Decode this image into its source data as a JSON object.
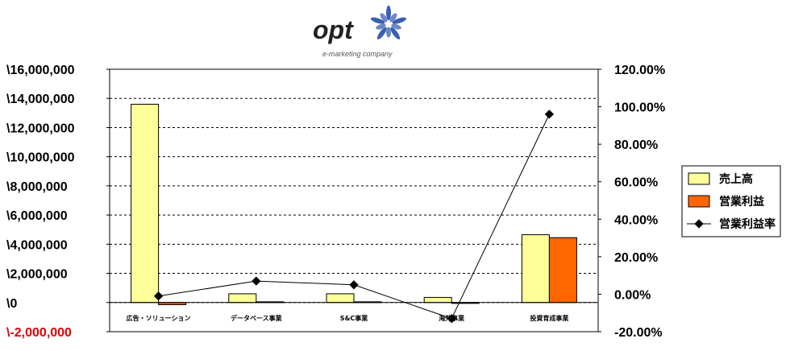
{
  "logo": {
    "text": "opt",
    "tagline": "e-marketing company",
    "petal_color": "#3a5fb0"
  },
  "legend": [
    {
      "label": "売上高",
      "type": "bar",
      "color": "#ffff99"
    },
    {
      "label": "営業利益",
      "type": "bar",
      "color": "#ff6600"
    },
    {
      "label": "営業利益率",
      "type": "line",
      "color": "#000000"
    }
  ],
  "chart_data": {
    "type": "bar",
    "categories": [
      "広告・ソリューション",
      "データベース事業",
      "S&C事業",
      "海外事業",
      "投資育成事業"
    ],
    "series": [
      {
        "name": "売上高",
        "axis": "left",
        "color": "#ffff99",
        "values": [
          13600000,
          600000,
          600000,
          350000,
          4650000
        ]
      },
      {
        "name": "営業利益",
        "axis": "left",
        "color": "#ff6600",
        "values": [
          -150000,
          50000,
          50000,
          -60000,
          4450000
        ]
      },
      {
        "name": "営業利益率",
        "axis": "right",
        "kind": "line",
        "color": "#000000",
        "values": [
          -0.01,
          0.07,
          0.05,
          -0.13,
          0.96
        ]
      }
    ],
    "left_axis": {
      "min": -2000000,
      "max": 16000000,
      "step": 2000000,
      "tick_labels": [
        "\\-2,000,000",
        "\\0",
        "\\2,000,000",
        "\\4,000,000",
        "\\6,000,000",
        "\\8,000,000",
        "\\10,000,000",
        "\\12,000,000",
        "\\14,000,000",
        "\\16,000,000"
      ],
      "negative_color": "#e00000"
    },
    "right_axis": {
      "min": -0.2,
      "max": 1.2,
      "step": 0.2,
      "tick_labels": [
        "-20.00%",
        "0.00%",
        "20.00%",
        "40.00%",
        "60.00%",
        "80.00%",
        "100.00%",
        "120.00%"
      ]
    },
    "grid": true,
    "legend_position": "right"
  }
}
